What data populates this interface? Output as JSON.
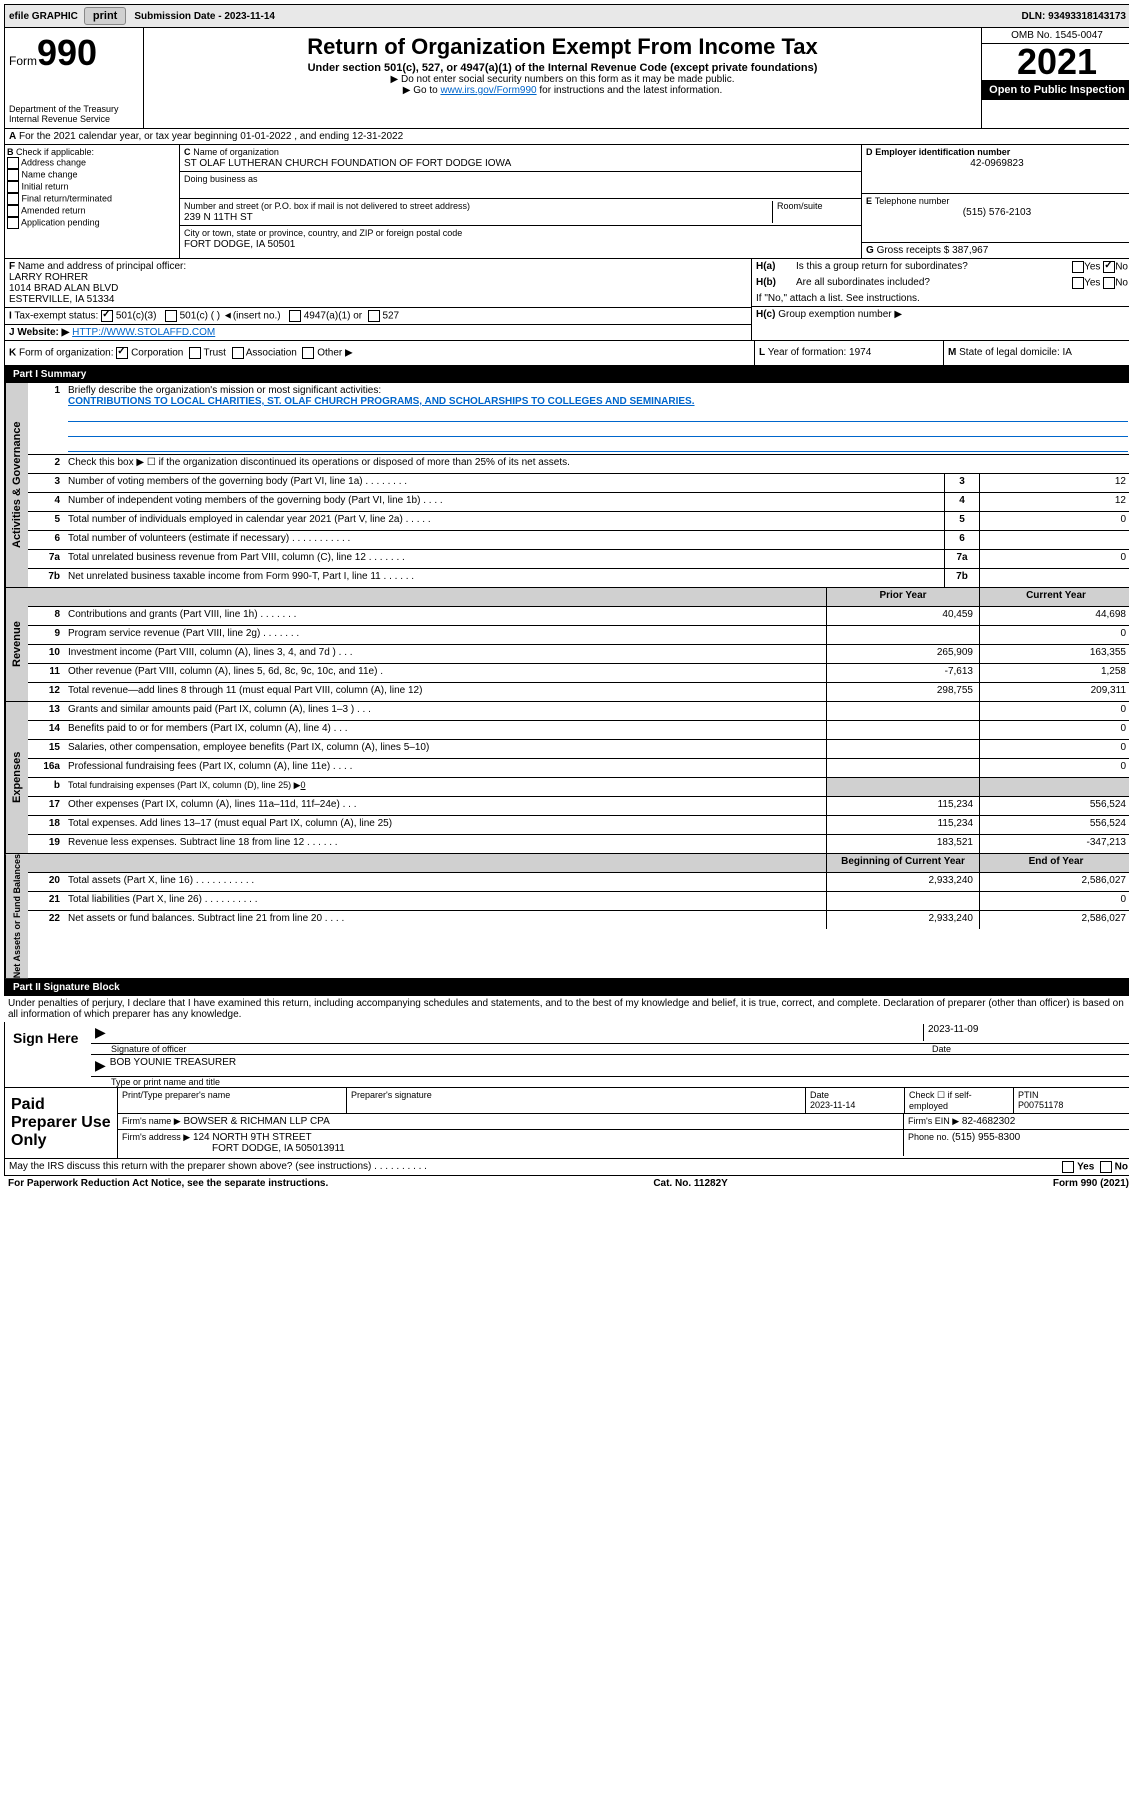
{
  "topbar": {
    "efile": "efile GRAPHIC",
    "print": "print",
    "subdate_label": "Submission Date - 2023-11-14",
    "dln": "DLN: 93493318143173"
  },
  "header": {
    "form_label": "Form",
    "form_no": "990",
    "title": "Return of Organization Exempt From Income Tax",
    "subtitle": "Under section 501(c), 527, or 4947(a)(1) of the Internal Revenue Code (except private foundations)",
    "note1": "▶ Do not enter social security numbers on this form as it may be made public.",
    "note2_pre": "▶ Go to ",
    "note2_link": "www.irs.gov/Form990",
    "note2_post": " for instructions and the latest information.",
    "dept": "Department of the Treasury\nInternal Revenue Service",
    "omb": "OMB No. 1545-0047",
    "year": "2021",
    "open": "Open to Public Inspection"
  },
  "taxyear": {
    "line_a": "For the 2021 calendar year, or tax year beginning 01-01-2022   , and ending 12-31-2022"
  },
  "blockB": {
    "label": "Check if applicable:",
    "items": [
      "Address change",
      "Name change",
      "Initial return",
      "Final return/terminated",
      "Amended return",
      "Application pending"
    ],
    "c_label": "Name of organization",
    "c_name": "ST OLAF LUTHERAN CHURCH FOUNDATION OF FORT DODGE IOWA",
    "dba_label": "Doing business as",
    "addr_label": "Number and street (or P.O. box if mail is not delivered to street address)",
    "room_label": "Room/suite",
    "addr": "239 N 11TH ST",
    "city_label": "City or town, state or province, country, and ZIP or foreign postal code",
    "city": "FORT DODGE, IA  50501",
    "d_label": "Employer identification number",
    "ein": "42-0969823",
    "e_label": "Telephone number",
    "phone": "(515) 576-2103",
    "g_label": "Gross receipts $",
    "gross": "387,967"
  },
  "blockF": {
    "f_label": "Name and address of principal officer:",
    "f_name": "LARRY ROHRER",
    "f_addr1": "1014 BRAD ALAN BLVD",
    "f_addr2": "ESTERVILLE, IA  51334",
    "i_label": "Tax-exempt status:",
    "i_501c3": "501(c)(3)",
    "i_501c": "501(c) (  ) ◄(insert no.)",
    "i_4947": "4947(a)(1) or",
    "i_527": "527",
    "j_label": "Website: ▶",
    "website": "HTTP://WWW.STOLAFFD.COM",
    "ha_label": "Is this a group return for subordinates?",
    "hb_label": "Are all subordinates included?",
    "h_note": "If \"No,\" attach a list. See instructions.",
    "hc_label": "Group exemption number ▶",
    "yes": "Yes",
    "no": "No"
  },
  "blockK": {
    "k_label": "Form of organization:",
    "corp": "Corporation",
    "trust": "Trust",
    "assoc": "Association",
    "other": "Other ▶",
    "l_label": "Year of formation: 1974",
    "m_label": "State of legal domicile: IA"
  },
  "part1": {
    "header": "Part I    Summary",
    "q1_label": "Briefly describe the organization's mission or most significant activities:",
    "q1_text": "CONTRIBUTIONS TO LOCAL CHARITIES, ST. OLAF CHURCH PROGRAMS, AND SCHOLARSHIPS TO COLLEGES AND SEMINARIES.",
    "q2_label": "Check this box ▶ ☐  if the organization discontinued its operations or disposed of more than 25% of its net assets.",
    "tab_rotate1": "Activities & Governance",
    "tab_rotate2": "Revenue",
    "tab_rotate3": "Expenses",
    "tab_rotate4": "Net Assets or Fund Balances",
    "lines_single": [
      {
        "n": "3",
        "label": "Number of voting members of the governing body (Part VI, line 1a)   .    .    .    .    .    .    .    .",
        "val": "12"
      },
      {
        "n": "4",
        "label": "Number of independent voting members of the governing body (Part VI, line 1b)   .    .    .    .",
        "val": "12"
      },
      {
        "n": "5",
        "label": "Total number of individuals employed in calendar year 2021 (Part V, line 2a)   .    .    .    .    .",
        "val": "0"
      },
      {
        "n": "6",
        "label": "Total number of volunteers (estimate if necessary)   .    .    .    .    .    .    .    .    .    .    .",
        "val": ""
      },
      {
        "n": "7a",
        "label": "Total unrelated business revenue from Part VIII, column (C), line 12   .    .    .    .    .    .    .",
        "val": "0"
      },
      {
        "n": "7b",
        "label": "Net unrelated business taxable income from Form 990-T, Part I, line 11   .    .    .    .    .    .",
        "val": ""
      }
    ],
    "col_headers": {
      "prior": "Prior Year",
      "current": "Current Year"
    },
    "lines_double": [
      {
        "n": "8",
        "label": "Contributions and grants (Part VIII, line 1h)   .    .    .    .    .    .    .",
        "p": "40,459",
        "c": "44,698"
      },
      {
        "n": "9",
        "label": "Program service revenue (Part VIII, line 2g)   .    .    .    .    .    .    .",
        "p": "",
        "c": "0"
      },
      {
        "n": "10",
        "label": "Investment income (Part VIII, column (A), lines 3, 4, and 7d )   .    .    .",
        "p": "265,909",
        "c": "163,355"
      },
      {
        "n": "11",
        "label": "Other revenue (Part VIII, column (A), lines 5, 6d, 8c, 9c, 10c, and 11e)   .",
        "p": "-7,613",
        "c": "1,258"
      },
      {
        "n": "12",
        "label": "Total revenue—add lines 8 through 11 (must equal Part VIII, column (A), line 12)",
        "p": "298,755",
        "c": "209,311"
      },
      {
        "n": "13",
        "label": "Grants and similar amounts paid (Part IX, column (A), lines 1–3 )   .    .    .",
        "p": "",
        "c": "0"
      },
      {
        "n": "14",
        "label": "Benefits paid to or for members (Part IX, column (A), line 4)   .    .    .",
        "p": "",
        "c": "0"
      },
      {
        "n": "15",
        "label": "Salaries, other compensation, employee benefits (Part IX, column (A), lines 5–10)",
        "p": "",
        "c": "0"
      },
      {
        "n": "16a",
        "label": "Professional fundraising fees (Part IX, column (A), line 11e)   .    .    .    .",
        "p": "",
        "c": "0"
      }
    ],
    "line_b": {
      "n": "b",
      "label": "Total fundraising expenses (Part IX, column (D), line 25) ▶",
      "val": "0"
    },
    "lines_double2": [
      {
        "n": "17",
        "label": "Other expenses (Part IX, column (A), lines 11a–11d, 11f–24e)   .    .    .",
        "p": "115,234",
        "c": "556,524"
      },
      {
        "n": "18",
        "label": "Total expenses. Add lines 13–17 (must equal Part IX, column (A), line 25)",
        "p": "115,234",
        "c": "556,524"
      },
      {
        "n": "19",
        "label": "Revenue less expenses. Subtract line 18 from line 12   .    .    .    .    .    .",
        "p": "183,521",
        "c": "-347,213"
      }
    ],
    "col_headers2": {
      "begin": "Beginning of Current Year",
      "end": "End of Year"
    },
    "lines_double3": [
      {
        "n": "20",
        "label": "Total assets (Part X, line 16)   .    .    .    .    .    .    .    .    .    .    .",
        "p": "2,933,240",
        "c": "2,586,027"
      },
      {
        "n": "21",
        "label": "Total liabilities (Part X, line 26)   .    .    .    .    .    .    .    .    .    .",
        "p": "",
        "c": "0"
      },
      {
        "n": "22",
        "label": "Net assets or fund balances. Subtract line 21 from line 20   .    .    .    .",
        "p": "2,933,240",
        "c": "2,586,027"
      }
    ]
  },
  "part2": {
    "header": "Part II    Signature Block",
    "penalty": "Under penalties of perjury, I declare that I have examined this return, including accompanying schedules and statements, and to the best of my knowledge and belief, it is true, correct, and complete. Declaration of preparer (other than officer) is based on all information of which preparer has any knowledge.",
    "sign_here": "Sign Here",
    "sig_officer": "Signature of officer",
    "sig_date": "2023-11-09",
    "date_label": "Date",
    "officer_name": "BOB YOUNIE TREASURER",
    "type_label": "Type or print name and title",
    "paid_label": "Paid Preparer Use Only",
    "prep_h1": "Print/Type preparer's name",
    "prep_h2": "Preparer's signature",
    "prep_h3": "Date",
    "prep_date": "2023-11-14",
    "prep_h4": "Check ☐ if self-employed",
    "prep_h5": "PTIN",
    "ptin": "P00751178",
    "firm_name_label": "Firm's name    ▶",
    "firm_name": "BOWSER & RICHMAN LLP CPA",
    "firm_ein_label": "Firm's EIN ▶",
    "firm_ein": "82-4682302",
    "firm_addr_label": "Firm's address ▶",
    "firm_addr": "124 NORTH 9TH STREET",
    "firm_city": "FORT DODGE, IA  505013911",
    "phone_label": "Phone no.",
    "phone": "(515) 955-8300",
    "may_irs": "May the IRS discuss this return with the preparer shown above? (see instructions)   .    .    .    .    .    .    .    .    .    .",
    "footer_left": "For Paperwork Reduction Act Notice, see the separate instructions.",
    "footer_mid": "Cat. No. 11282Y",
    "footer_right": "Form 990 (2021)"
  },
  "letters": {
    "A": "A",
    "B": "B",
    "C": "C",
    "D": "D",
    "E": "E",
    "F": "F",
    "G": "G",
    "H": "H",
    "I": "I",
    "J": "J",
    "K": "K",
    "L": "L",
    "M": "M",
    "Ha": "H(a)",
    "Hb": "H(b)",
    "Hc": "H(c)"
  }
}
